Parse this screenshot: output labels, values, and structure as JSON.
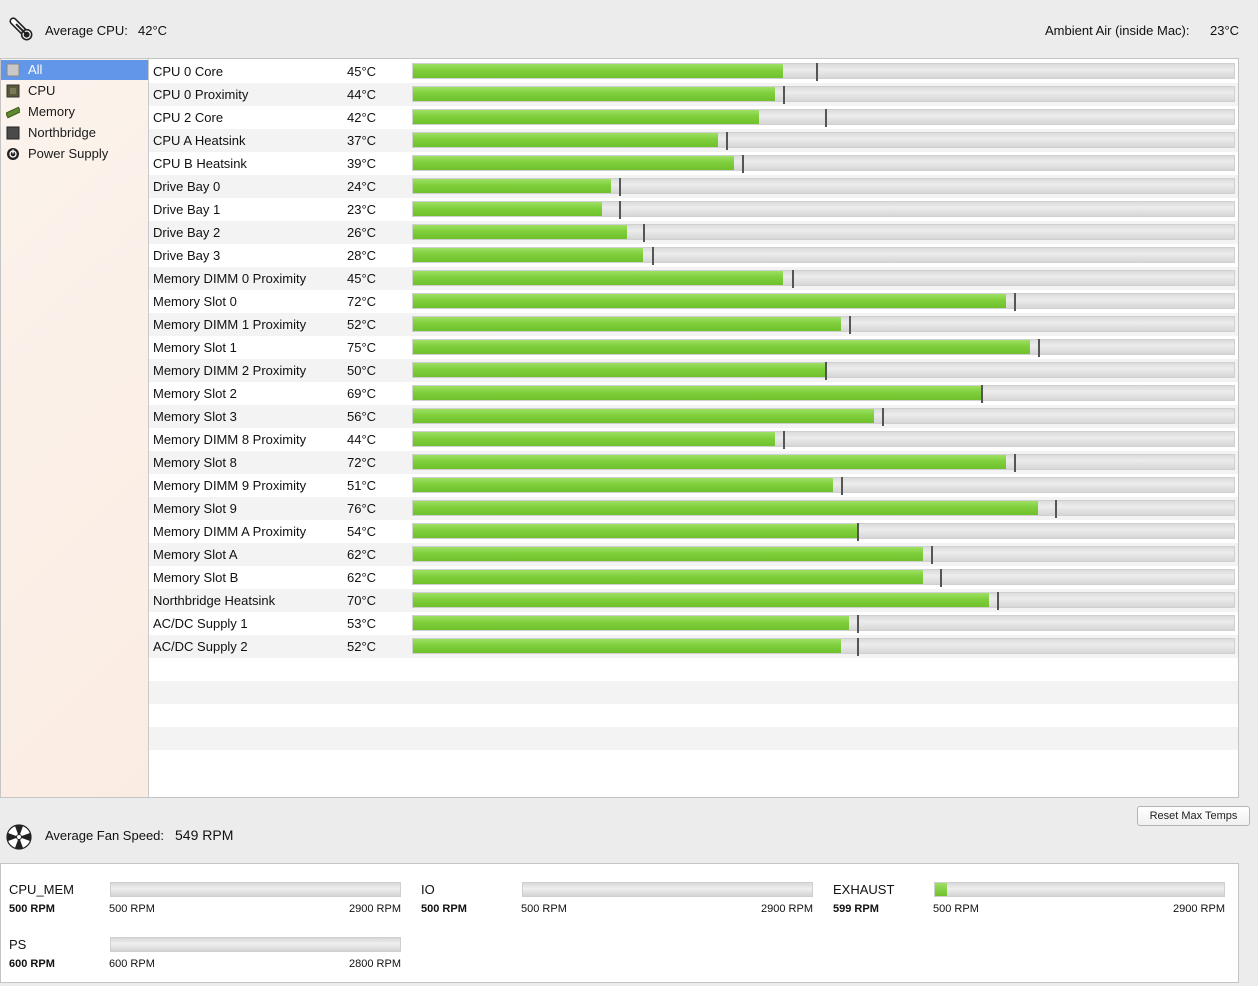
{
  "header": {
    "avg_cpu_label": "Average CPU:",
    "avg_cpu_value": "42°C",
    "ambient_label": "Ambient Air (inside Mac):",
    "ambient_value": "23°C"
  },
  "sidebar": {
    "items": [
      {
        "label": "All",
        "icon": "all-icon",
        "selected": true
      },
      {
        "label": "CPU",
        "icon": "cpu-chip-icon",
        "selected": false
      },
      {
        "label": "Memory",
        "icon": "memory-stick-icon",
        "selected": false
      },
      {
        "label": "Northbridge",
        "icon": "northbridge-chip-icon",
        "selected": false
      },
      {
        "label": "Power Supply",
        "icon": "power-supply-icon",
        "selected": false
      }
    ]
  },
  "sensors": [
    {
      "name": "CPU 0 Core",
      "temp": "45°C",
      "value": 45,
      "max": 49
    },
    {
      "name": "CPU 0 Proximity",
      "temp": "44°C",
      "value": 44,
      "max": 45
    },
    {
      "name": "CPU 2 Core",
      "temp": "42°C",
      "value": 42,
      "max": 50
    },
    {
      "name": "CPU A Heatsink",
      "temp": "37°C",
      "value": 37,
      "max": 38
    },
    {
      "name": "CPU B Heatsink",
      "temp": "39°C",
      "value": 39,
      "max": 40
    },
    {
      "name": "Drive Bay 0",
      "temp": "24°C",
      "value": 24,
      "max": 25
    },
    {
      "name": "Drive Bay 1",
      "temp": "23°C",
      "value": 23,
      "max": 25
    },
    {
      "name": "Drive Bay 2",
      "temp": "26°C",
      "value": 26,
      "max": 28
    },
    {
      "name": "Drive Bay 3",
      "temp": "28°C",
      "value": 28,
      "max": 29
    },
    {
      "name": "Memory DIMM 0 Proximity",
      "temp": "45°C",
      "value": 45,
      "max": 46
    },
    {
      "name": "Memory Slot 0",
      "temp": "72°C",
      "value": 72,
      "max": 73
    },
    {
      "name": "Memory DIMM 1 Proximity",
      "temp": "52°C",
      "value": 52,
      "max": 53
    },
    {
      "name": "Memory Slot 1",
      "temp": "75°C",
      "value": 75,
      "max": 76
    },
    {
      "name": "Memory DIMM 2 Proximity",
      "temp": "50°C",
      "value": 50,
      "max": 50
    },
    {
      "name": "Memory Slot 2",
      "temp": "69°C",
      "value": 69,
      "max": 69
    },
    {
      "name": "Memory Slot 3",
      "temp": "56°C",
      "value": 56,
      "max": 57
    },
    {
      "name": "Memory DIMM 8 Proximity",
      "temp": "44°C",
      "value": 44,
      "max": 45
    },
    {
      "name": "Memory Slot 8",
      "temp": "72°C",
      "value": 72,
      "max": 73
    },
    {
      "name": "Memory DIMM 9 Proximity",
      "temp": "51°C",
      "value": 51,
      "max": 52
    },
    {
      "name": "Memory Slot 9",
      "temp": "76°C",
      "value": 76,
      "max": 78
    },
    {
      "name": "Memory DIMM A Proximity",
      "temp": "54°C",
      "value": 54,
      "max": 54
    },
    {
      "name": "Memory Slot A",
      "temp": "62°C",
      "value": 62,
      "max": 63
    },
    {
      "name": "Memory Slot B",
      "temp": "62°C",
      "value": 62,
      "max": 64
    },
    {
      "name": "Northbridge Heatsink",
      "temp": "70°C",
      "value": 70,
      "max": 71
    },
    {
      "name": "AC/DC Supply 1",
      "temp": "53°C",
      "value": 53,
      "max": 54
    },
    {
      "name": "AC/DC Supply 2",
      "temp": "52°C",
      "value": 52,
      "max": 54
    }
  ],
  "temp_scale_max": 100,
  "fans_header": {
    "avg_label": "Average Fan Speed:",
    "avg_value": "549 RPM",
    "reset_button": "Reset Max Temps"
  },
  "fans": [
    {
      "name": "CPU_MEM",
      "current": "500 RPM",
      "min": "500 RPM",
      "max": "2900 RPM",
      "rpm": 500,
      "min_rpm": 500,
      "max_rpm": 2900
    },
    {
      "name": "IO",
      "current": "500 RPM",
      "min": "500 RPM",
      "max": "2900 RPM",
      "rpm": 500,
      "min_rpm": 500,
      "max_rpm": 2900
    },
    {
      "name": "EXHAUST",
      "current": "599 RPM",
      "min": "500 RPM",
      "max": "2900 RPM",
      "rpm": 599,
      "min_rpm": 500,
      "max_rpm": 2900
    },
    {
      "name": "PS",
      "current": "600 RPM",
      "min": "600 RPM",
      "max": "2800 RPM",
      "rpm": 600,
      "min_rpm": 600,
      "max_rpm": 2800
    }
  ]
}
